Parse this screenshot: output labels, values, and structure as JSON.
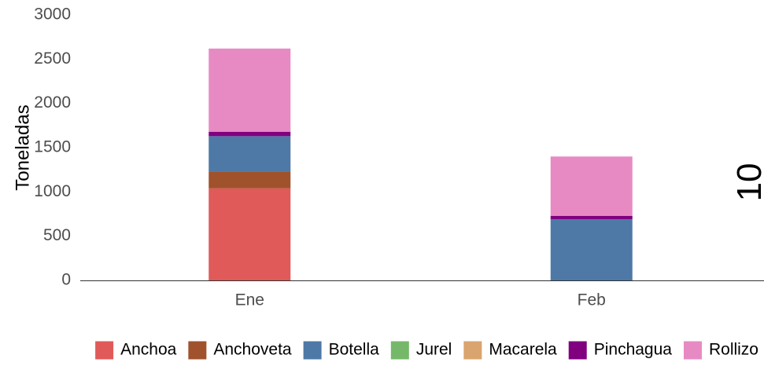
{
  "chart_data": {
    "type": "bar",
    "stacked": true,
    "categories": [
      "Ene",
      "Feb"
    ],
    "series": [
      {
        "name": "Anchoa",
        "color": "#E05A5A",
        "values": [
          1040,
          0
        ]
      },
      {
        "name": "Anchoveta",
        "color": "#A0522D",
        "values": [
          190,
          0
        ]
      },
      {
        "name": "Botella",
        "color": "#4E79A7",
        "values": [
          400,
          690
        ]
      },
      {
        "name": "Jurel",
        "color": "#76B86A",
        "values": [
          0,
          0
        ]
      },
      {
        "name": "Macarela",
        "color": "#D9A46E",
        "values": [
          0,
          0
        ]
      },
      {
        "name": "Pinchagua",
        "color": "#800080",
        "values": [
          50,
          40
        ]
      },
      {
        "name": "Rollizo",
        "color": "#E78AC3",
        "values": [
          940,
          670
        ]
      }
    ],
    "ylabel": "Toneladas",
    "xlabel": "",
    "ylim": [
      0,
      3000
    ],
    "yticks": [
      0,
      500,
      1000,
      1500,
      2000,
      2500,
      3000
    ],
    "grid": false,
    "legend_position": "bottom",
    "right_edge_text": "10"
  }
}
